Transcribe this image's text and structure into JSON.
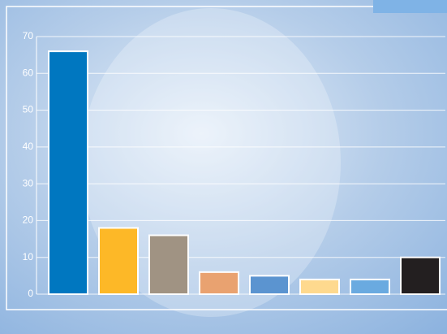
{
  "chart_data": {
    "type": "bar",
    "categories": [
      null,
      null,
      null,
      null,
      null,
      null,
      null,
      null
    ],
    "values": [
      66,
      18,
      16,
      6,
      5,
      4,
      4,
      10
    ],
    "colors": [
      "#0077c0",
      "#fdb827",
      "#a09383",
      "#e9a270",
      "#5b94d0",
      "#fed98e",
      "#6aaae0",
      "#231f20"
    ],
    "ylim": [
      0,
      70
    ],
    "yticks": [
      0,
      10,
      20,
      30,
      40,
      50,
      60,
      70
    ],
    "grid": true
  }
}
